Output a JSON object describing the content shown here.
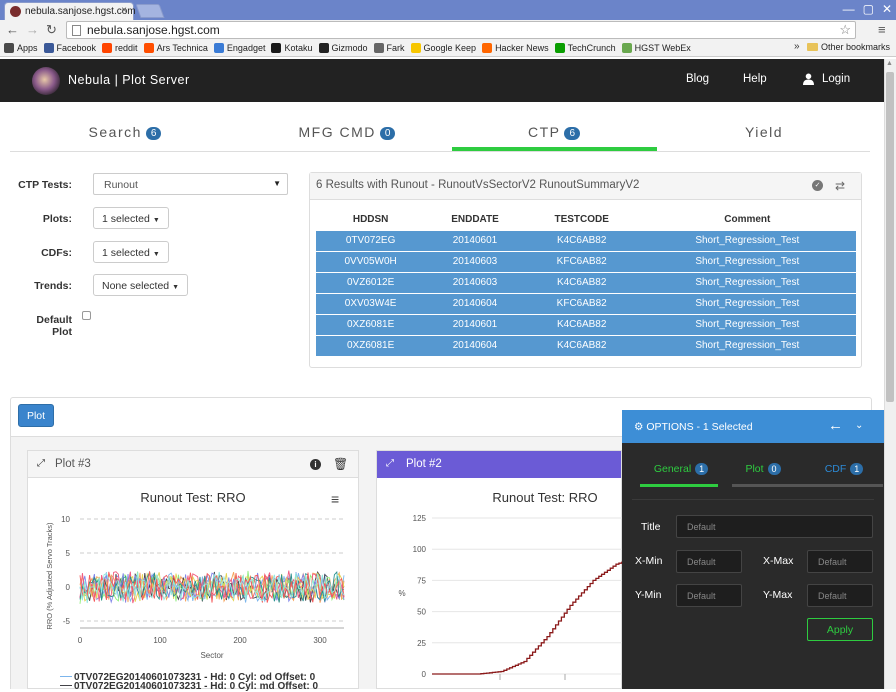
{
  "browser": {
    "tab_title": "nebula.sanjose.hgst.com",
    "tab_close": "×",
    "url": "nebula.sanjose.hgst.com",
    "window_buttons": [
      "—",
      "▢",
      "✕"
    ],
    "bookmarks": [
      {
        "label": "Apps",
        "color": "#4a4a4a"
      },
      {
        "label": "Facebook",
        "color": "#3b5998"
      },
      {
        "label": "reddit",
        "color": "#ff4500"
      },
      {
        "label": "Ars Technica",
        "color": "#ff4e00"
      },
      {
        "label": "Engadget",
        "color": "#3a7bd5"
      },
      {
        "label": "Kotaku",
        "color": "#1a1a1a"
      },
      {
        "label": "Gizmodo",
        "color": "#222222"
      },
      {
        "label": "Fark",
        "color": "#666666"
      },
      {
        "label": "Google Keep",
        "color": "#f7c600"
      },
      {
        "label": "Hacker News",
        "color": "#ff6600"
      },
      {
        "label": "TechCrunch",
        "color": "#0a9e01"
      },
      {
        "label": "HGST WebEx",
        "color": "#6aa84f"
      }
    ],
    "bookmarks_more": "»",
    "other_bookmarks": "Other bookmarks"
  },
  "site": {
    "brand": "Nebula | Plot Server",
    "nav": {
      "blog": "Blog",
      "help": "Help",
      "login": "Login"
    }
  },
  "tabs": [
    {
      "label": "Search",
      "count": "6"
    },
    {
      "label": "MFG CMD",
      "count": "0"
    },
    {
      "label": "CTP",
      "count": "6",
      "active": true
    },
    {
      "label": "Yield",
      "count": ""
    }
  ],
  "form": {
    "ctp_tests_label": "CTP Tests:",
    "ctp_tests_value": "Runout",
    "plots_label": "Plots:",
    "plots_value": "1 selected",
    "cdfs_label": "CDFs:",
    "cdfs_value": "1 selected",
    "trends_label": "Trends:",
    "trends_value": "None selected",
    "default_plot_label_1": "Default",
    "default_plot_label_2": "Plot",
    "default_plot_checked": false
  },
  "results": {
    "header": "6 Results with Runout - RunoutVsSectorV2 RunoutSummaryV2",
    "columns": [
      "HDDSN",
      "ENDDATE",
      "TESTCODE",
      "Comment"
    ],
    "rows": [
      [
        "0TV072EG",
        "20140601",
        "K4C6AB82",
        "Short_Regression_Test"
      ],
      [
        "0VV05W0H",
        "20140603",
        "KFC6AB82",
        "Short_Regression_Test"
      ],
      [
        "0VZ6012E",
        "20140603",
        "K4C6AB82",
        "Short_Regression_Test"
      ],
      [
        "0XV03W4E",
        "20140604",
        "KFC6AB82",
        "Short_Regression_Test"
      ],
      [
        "0XZ6081E",
        "20140601",
        "K4C6AB82",
        "Short_Regression_Test"
      ],
      [
        "0XZ6081E",
        "20140604",
        "K4C6AB82",
        "Short_Regression_Test"
      ]
    ]
  },
  "plot_button": "Plot",
  "plot3": {
    "title": "Plot #3",
    "chart_title": "Runout Test: RRO",
    "ylabel": "RRO (% Adjusted Servo Tracks)",
    "xlabel": "Sector",
    "legend_1": "0TV072EG20140601073231 - Hd: 0 Cyl: od Offset: 0",
    "legend_2": "0TV072EG20140601073231 - Hd: 0 Cyl: md Offset: 0"
  },
  "plot2": {
    "title": "Plot #2",
    "chart_title": "Runout Test: RRO",
    "ylabel": "%"
  },
  "chart_data": [
    {
      "type": "line",
      "title": "Runout Test: RRO",
      "xlabel": "Sector",
      "ylabel": "RRO (% Adjusted Servo Tracks)",
      "xlim": [
        0,
        330
      ],
      "ylim": [
        -5,
        10
      ],
      "x_ticks": [
        0,
        100,
        200,
        300
      ],
      "y_ticks": [
        10,
        5,
        0,
        -5
      ],
      "series_colors": [
        "#7cb5ec",
        "#434348",
        "#90ed7d",
        "#f7a35c",
        "#8085e9",
        "#f15c80",
        "#e4d354",
        "#2b908f",
        "#f45b5b",
        "#91e8e1"
      ],
      "amplitude": 2.5
    },
    {
      "type": "line",
      "title": "Runout Test: RRO",
      "ylabel": "%",
      "ylim": [
        0,
        125
      ],
      "y_ticks": [
        125,
        100,
        75,
        50,
        25,
        0
      ],
      "series_color": "#8b1a1a",
      "x": [
        0,
        1,
        2,
        3,
        4,
        5,
        6,
        7,
        8,
        9,
        10
      ],
      "values": [
        0,
        0,
        0,
        2,
        10,
        30,
        55,
        75,
        88,
        94,
        96
      ]
    }
  ],
  "options": {
    "header": "OPTIONS - 1 Selected",
    "tabs": [
      {
        "label": "General",
        "count": "1"
      },
      {
        "label": "Plot",
        "count": "0"
      },
      {
        "label": "CDF",
        "count": "1"
      }
    ],
    "title_label": "Title",
    "title_placeholder": "Default",
    "xmin_label": "X-Min",
    "xmin_placeholder": "Default",
    "xmax_label": "X-Max",
    "xmax_placeholder": "Default",
    "ymin_label": "Y-Min",
    "ymin_placeholder": "Default",
    "ymax_label": "Y-Max",
    "ymax_placeholder": "Default",
    "apply": "Apply"
  }
}
